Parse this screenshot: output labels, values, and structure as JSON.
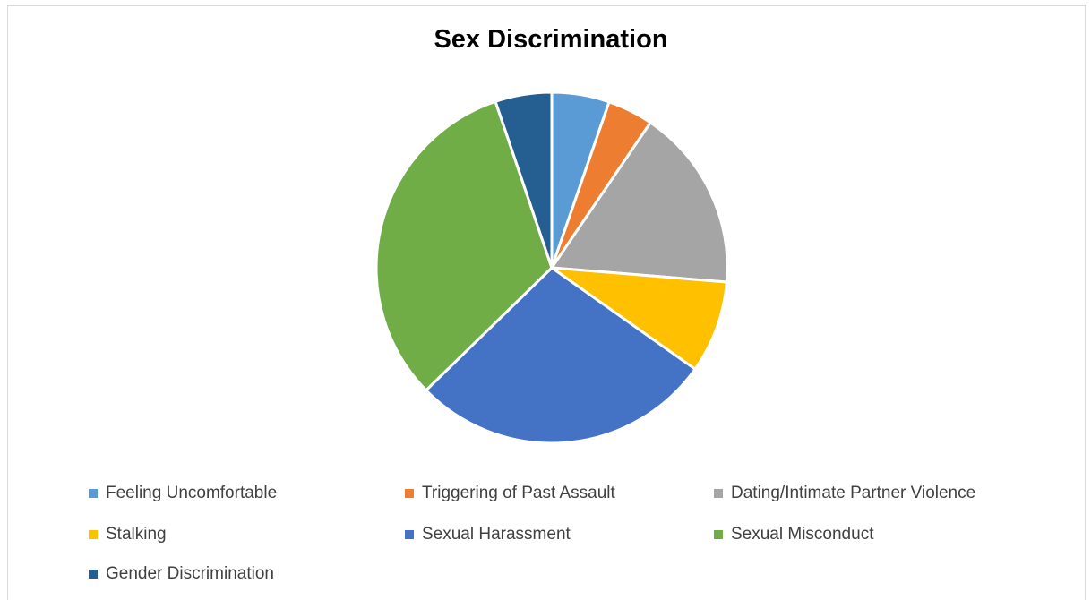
{
  "chart_data": {
    "type": "pie",
    "title": "Sex Discrimination",
    "categories": [
      "Feeling Uncomfortable",
      "Triggering of Past Assault",
      "Dating/Intimate Partner Violence",
      "Stalking",
      "Sexual Harassment",
      "Sexual Misconduct",
      "Gender Discrimination"
    ],
    "values": [
      5.3,
      4.2,
      16.8,
      8.5,
      27.9,
      32.1,
      5.2
    ],
    "colors": [
      "#5b9bd5",
      "#ed7d31",
      "#a5a5a5",
      "#ffc000",
      "#4472c4",
      "#70ad47",
      "#255e91"
    ],
    "legend_position": "bottom"
  }
}
